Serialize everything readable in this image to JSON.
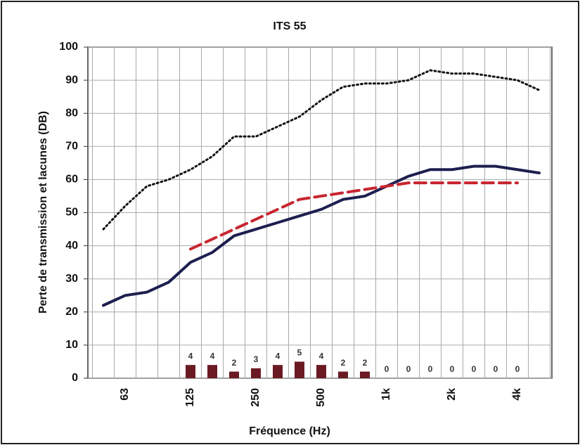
{
  "chart_data": {
    "type": "line",
    "title": "ITS 55",
    "y_label": "Perte de transmission et lacunes (DB)",
    "x_label": "Fréquence (Hz)",
    "categories": [
      null,
      "63",
      null,
      null,
      "125",
      null,
      null,
      "250",
      null,
      null,
      "500",
      null,
      null,
      "1k",
      null,
      null,
      "2k",
      null,
      null,
      "4k",
      null
    ],
    "ylim": [
      0,
      100
    ],
    "yticks": [
      0,
      10,
      20,
      30,
      40,
      50,
      60,
      70,
      80,
      90,
      100
    ],
    "grid": true,
    "series": [
      {
        "color": "#111111",
        "style": "dotted",
        "values": [
          45,
          52,
          58,
          60,
          63,
          67,
          73,
          73,
          76,
          79,
          84,
          88,
          89,
          89,
          90,
          93,
          92,
          92,
          91,
          90,
          87
        ]
      },
      {
        "color": "#1d1f4f",
        "style": "solid",
        "values": [
          22,
          25,
          26,
          29,
          35,
          38,
          43,
          45,
          47,
          49,
          51,
          54,
          55,
          58,
          61,
          63,
          63,
          64,
          64,
          63,
          62
        ]
      },
      {
        "color": "#c8252f",
        "style": "dashed",
        "values": [
          null,
          null,
          null,
          null,
          39,
          42,
          45,
          48,
          51,
          54,
          55,
          56,
          57,
          58,
          59,
          59,
          59,
          59,
          59,
          59,
          null
        ]
      }
    ],
    "bars": {
      "color": "#6b1a24",
      "values": [
        null,
        null,
        null,
        null,
        4,
        4,
        2,
        3,
        4,
        5,
        4,
        2,
        2,
        0,
        0,
        0,
        0,
        0,
        0,
        0,
        null
      ]
    }
  }
}
